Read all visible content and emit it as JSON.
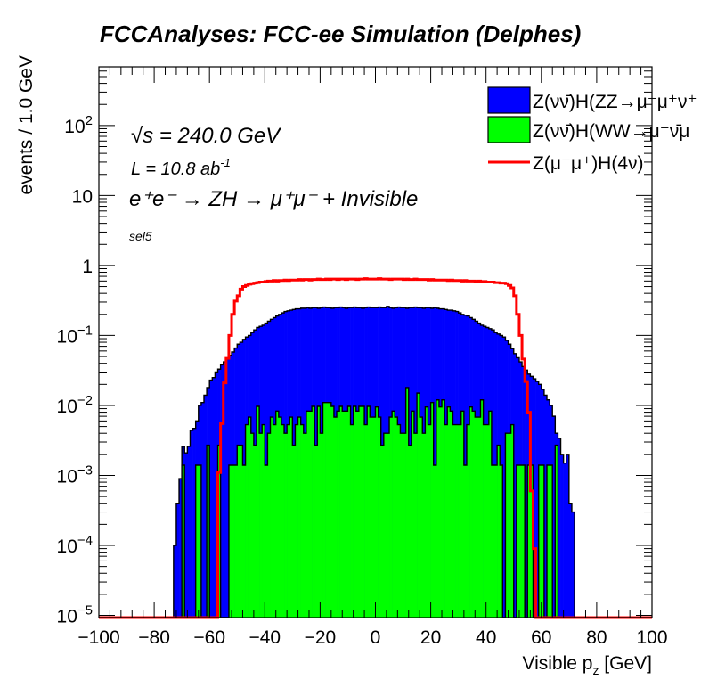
{
  "chart_data": {
    "type": "bar",
    "stacked": true,
    "title": "FCCAnalyses: FCC-ee Simulation (Delphes)",
    "xlabel": "Visible p_z [GeV]",
    "xlabel_main": "Visible p",
    "xlabel_sub": "z",
    "xlabel_unit": " [GeV]",
    "ylabel": "events / 1.0 GeV",
    "xlim": [
      -100,
      100
    ],
    "ylim": [
      9.3e-06,
      690
    ],
    "log_y": true,
    "bin_width": 1,
    "bin_range": [
      -75,
      75
    ],
    "x_tick_labels": [
      "−100",
      "−80",
      "−60",
      "−40",
      "−20",
      "0",
      "20",
      "40",
      "60",
      "80",
      "100"
    ],
    "x_tick_values": [
      -100,
      -80,
      -60,
      -40,
      -20,
      0,
      20,
      40,
      60,
      80,
      100
    ],
    "y_tick_labels": [
      "10^-5",
      "10^-4",
      "10^-3",
      "10^-2",
      "10^-1",
      "1",
      "10",
      "10^2"
    ],
    "y_tick_values": [
      1e-05,
      0.0001,
      0.001,
      0.01,
      0.1,
      1,
      10,
      100
    ],
    "annotations": {
      "sqrts": "s = 240.0 GeV",
      "sqrt_symbol": "√",
      "lumi": "L = 10.8 ab",
      "lumi_exp": "-1",
      "process": "e⁺e⁻ → ZH → μ⁺μ⁻ + Invisible",
      "selection": "sel5"
    },
    "legend_position": "top-right",
    "series": [
      {
        "name": "Z(νν̄)H(ZZ→μ⁻μ⁺ν⁺",
        "color": "#0000ff",
        "style": "filled",
        "values": [
          0,
          0,
          0.0001,
          0.0004,
          0.0009,
          0.0026,
          0.0021,
          0.0026,
          0.0044,
          0.0047,
          0.006,
          0.01,
          0.011,
          0.014,
          0.018,
          0.023,
          0.025,
          0.03,
          0.033,
          0.038,
          0.042,
          0.046,
          0.052,
          0.058,
          0.066,
          0.075,
          0.08,
          0.088,
          0.095,
          0.1,
          0.11,
          0.12,
          0.13,
          0.135,
          0.14,
          0.15,
          0.16,
          0.17,
          0.18,
          0.19,
          0.2,
          0.21,
          0.22,
          0.225,
          0.23,
          0.235,
          0.24,
          0.24,
          0.245,
          0.245,
          0.25,
          0.245,
          0.25,
          0.25,
          0.245,
          0.25,
          0.255,
          0.25,
          0.25,
          0.245,
          0.25,
          0.25,
          0.255,
          0.25,
          0.245,
          0.25,
          0.25,
          0.255,
          0.25,
          0.25,
          0.245,
          0.25,
          0.255,
          0.25,
          0.25,
          0.25,
          0.255,
          0.25,
          0.25,
          0.26,
          0.25,
          0.245,
          0.25,
          0.255,
          0.25,
          0.25,
          0.245,
          0.25,
          0.25,
          0.255,
          0.25,
          0.25,
          0.245,
          0.25,
          0.25,
          0.245,
          0.25,
          0.245,
          0.24,
          0.24,
          0.235,
          0.23,
          0.23,
          0.225,
          0.22,
          0.21,
          0.2,
          0.195,
          0.19,
          0.18,
          0.17,
          0.16,
          0.15,
          0.14,
          0.135,
          0.13,
          0.125,
          0.12,
          0.11,
          0.105,
          0.1,
          0.095,
          0.085,
          0.075,
          0.065,
          0.055,
          0.048,
          0.042,
          0.036,
          0.032,
          0.028,
          0.026,
          0.024,
          0.022,
          0.02,
          0.017,
          0.014,
          0.012,
          0.01,
          0.007,
          0.004,
          0.0034,
          0.002,
          0.0015,
          0.002,
          0.0004,
          0.0003,
          0,
          0,
          0
        ]
      },
      {
        "name": "Z(νν̄)H(WW→μ⁻ν̄μ",
        "color": "#00ff00",
        "style": "filled",
        "values": [
          0,
          0,
          0,
          0,
          0,
          0.0014,
          0,
          0,
          0,
          0,
          0.0014,
          0.0014,
          0,
          0,
          0.0027,
          0,
          0,
          0,
          0.0027,
          0,
          0,
          0,
          0.0014,
          0.0014,
          0.0014,
          0.0027,
          0.0027,
          0.0014,
          0.0053,
          0.0068,
          0.004,
          0.0027,
          0.0097,
          0.004,
          0.0053,
          0.0014,
          0.004,
          0.0068,
          0.0053,
          0.0083,
          0.0068,
          0.0053,
          0.004,
          0.0053,
          0.0068,
          0.0027,
          0.0053,
          0.0068,
          0.0053,
          0.004,
          0.0083,
          0.0083,
          0.0097,
          0.0027,
          0.0097,
          0.004,
          0.011,
          0.011,
          0.011,
          0.0097,
          0.0068,
          0.0083,
          0.0097,
          0.0083,
          0.0083,
          0.0097,
          0.0053,
          0.0097,
          0.0083,
          0.0097,
          0.0097,
          0.0053,
          0.0097,
          0.0068,
          0.0068,
          0.0095,
          0.0068,
          0.0027,
          0.004,
          0.004,
          0.0068,
          0.0083,
          0.0068,
          0.0053,
          0.004,
          0.004,
          0.018,
          0.0027,
          0.0083,
          0.004,
          0.015,
          0.0068,
          0.004,
          0.0095,
          0.0053,
          0.011,
          0.0014,
          0.012,
          0.0095,
          0.012,
          0.0053,
          0.0095,
          0.0083,
          0.0053,
          0.0053,
          0.0053,
          0.0083,
          0.0014,
          0.0053,
          0.0095,
          0.0083,
          0.0068,
          0.0068,
          0.012,
          0.0053,
          0.0053,
          0.0083,
          0.0014,
          0.0014,
          0.0027,
          0.0014,
          0,
          0.004,
          0.004,
          0.0053,
          0,
          0.0014,
          0.0014,
          0.0014,
          0,
          0.0014,
          0.0014,
          0,
          0,
          0.0014,
          0.0014,
          0,
          0.0014,
          0.0014,
          0,
          0.0027,
          0,
          0,
          0,
          0,
          0,
          0,
          0,
          0,
          0
        ]
      },
      {
        "name": "Z(μ⁻μ⁺)H(4ν)",
        "color": "#ff0000",
        "style": "line",
        "values": [
          0,
          0,
          0,
          0,
          0,
          0,
          0,
          0,
          0,
          0,
          0,
          0,
          0,
          0,
          0,
          0,
          0,
          0,
          0.0011,
          0.0055,
          0.021,
          0.047,
          0.1,
          0.2,
          0.31,
          0.37,
          0.46,
          0.5,
          0.52,
          0.54,
          0.55,
          0.56,
          0.57,
          0.58,
          0.58,
          0.59,
          0.6,
          0.6,
          0.61,
          0.6,
          0.61,
          0.61,
          0.62,
          0.61,
          0.62,
          0.62,
          0.62,
          0.63,
          0.62,
          0.63,
          0.63,
          0.62,
          0.63,
          0.63,
          0.64,
          0.63,
          0.63,
          0.64,
          0.63,
          0.64,
          0.64,
          0.63,
          0.64,
          0.64,
          0.63,
          0.64,
          0.64,
          0.64,
          0.63,
          0.64,
          0.64,
          0.65,
          0.64,
          0.64,
          0.64,
          0.64,
          0.65,
          0.64,
          0.64,
          0.64,
          0.63,
          0.64,
          0.64,
          0.64,
          0.64,
          0.63,
          0.64,
          0.63,
          0.63,
          0.64,
          0.63,
          0.63,
          0.63,
          0.63,
          0.62,
          0.63,
          0.62,
          0.62,
          0.62,
          0.62,
          0.62,
          0.61,
          0.62,
          0.61,
          0.61,
          0.61,
          0.6,
          0.61,
          0.6,
          0.6,
          0.6,
          0.59,
          0.6,
          0.59,
          0.59,
          0.58,
          0.58,
          0.58,
          0.57,
          0.57,
          0.56,
          0.56,
          0.55,
          0.52,
          0.48,
          0.37,
          0.2,
          0.1,
          0.046,
          0.022,
          0.008,
          0.0006,
          9e-05,
          0,
          0,
          0,
          0,
          0,
          0,
          0,
          0,
          0,
          0,
          0,
          0,
          0,
          0,
          0,
          0,
          0
        ]
      }
    ]
  }
}
